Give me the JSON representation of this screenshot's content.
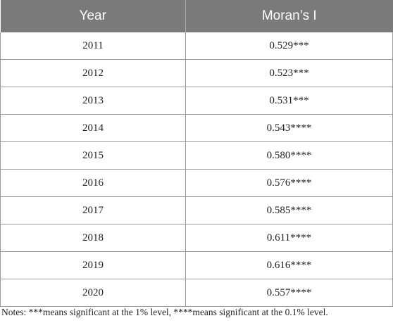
{
  "table": {
    "headers": [
      "Year",
      "Moran’s I"
    ],
    "rows": [
      {
        "year": "2011",
        "value": "0.529***"
      },
      {
        "year": "2012",
        "value": "0.523***"
      },
      {
        "year": "2013",
        "value": "0.531***"
      },
      {
        "year": "2014",
        "value": "0.543****"
      },
      {
        "year": "2015",
        "value": "0.580****"
      },
      {
        "year": "2016",
        "value": "0.576****"
      },
      {
        "year": "2017",
        "value": "0.585****"
      },
      {
        "year": "2018",
        "value": "0.611****"
      },
      {
        "year": "2019",
        "value": "0.616****"
      },
      {
        "year": "2020",
        "value": "0.557****"
      }
    ]
  },
  "notes": "Notes: ***means significant at the 1% level, ****means significant at the 0.1% level."
}
